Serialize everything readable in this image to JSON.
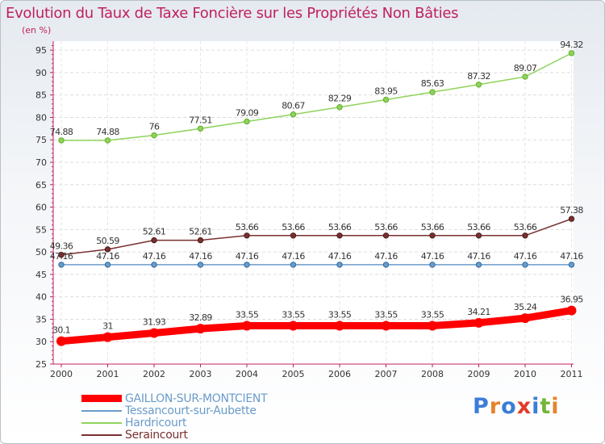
{
  "title": "Evolution du Taux de Taxe Foncière sur les Propriétés Non Bâties",
  "units": "(en %)",
  "logo": {
    "letters": [
      "P",
      "r",
      "o",
      "x",
      "i",
      "t",
      "i"
    ],
    "colors": [
      "#3b7dd8",
      "#e8832a",
      "#3b7dd8",
      "#e23b2b",
      "#3b7dd8",
      "#74b53a",
      "#e8832a"
    ]
  },
  "chart_data": {
    "type": "line",
    "title": "Evolution du Taux de Taxe Foncière sur les Propriétés Non Bâties",
    "ylabel": "(en %)",
    "xlabel": "",
    "ylim": [
      25,
      97
    ],
    "yticks": [
      25,
      30,
      35,
      40,
      45,
      50,
      55,
      60,
      65,
      70,
      75,
      80,
      85,
      90,
      95
    ],
    "x": [
      "2000",
      "2001",
      "2002",
      "2003",
      "2004",
      "2005",
      "2006",
      "2007",
      "2008",
      "2009",
      "2010",
      "2011"
    ],
    "grid": true,
    "legend_position": "bottom-left",
    "series": [
      {
        "name": "GAILLON-SUR-MONTCIENT",
        "color": "#ff0000",
        "values": [
          30.1,
          31,
          31.93,
          32.89,
          33.55,
          33.55,
          33.55,
          33.55,
          33.55,
          34.21,
          35.24,
          36.95
        ],
        "labels": [
          "30.1",
          "31",
          "31.93",
          "32.89",
          "33.55",
          "33.55",
          "33.55",
          "33.55",
          "33.55",
          "34.21",
          "35.24",
          "36.95"
        ]
      },
      {
        "name": "Tessancourt-sur-Aubette",
        "color": "#6a9cc9",
        "values": [
          47.16,
          47.16,
          47.16,
          47.16,
          47.16,
          47.16,
          47.16,
          47.16,
          47.16,
          47.16,
          47.16,
          47.16
        ],
        "labels": [
          "47.16",
          "47.16",
          "47.16",
          "47.16",
          "47.16",
          "47.16",
          "47.16",
          "47.16",
          "47.16",
          "47.16",
          "47.16",
          "47.16"
        ]
      },
      {
        "name": "Hardricourt",
        "color": "#8fd35a",
        "values": [
          74.88,
          74.88,
          76,
          77.51,
          79.09,
          80.67,
          82.29,
          83.95,
          85.63,
          87.32,
          89.07,
          94.32
        ],
        "labels": [
          "74.88",
          "74.88",
          "76",
          "77.51",
          "79.09",
          "80.67",
          "82.29",
          "83.95",
          "85.63",
          "87.32",
          "89.07",
          "94.32"
        ]
      },
      {
        "name": "Seraincourt",
        "color": "#7a3030",
        "values": [
          49.36,
          50.59,
          52.61,
          52.61,
          53.66,
          53.66,
          53.66,
          53.66,
          53.66,
          53.66,
          53.66,
          57.38
        ],
        "labels": [
          "49.36",
          "50.59",
          "52.61",
          "52.61",
          "53.66",
          "53.66",
          "53.66",
          "53.66",
          "53.66",
          "53.66",
          "53.66",
          "57.38"
        ]
      }
    ]
  }
}
